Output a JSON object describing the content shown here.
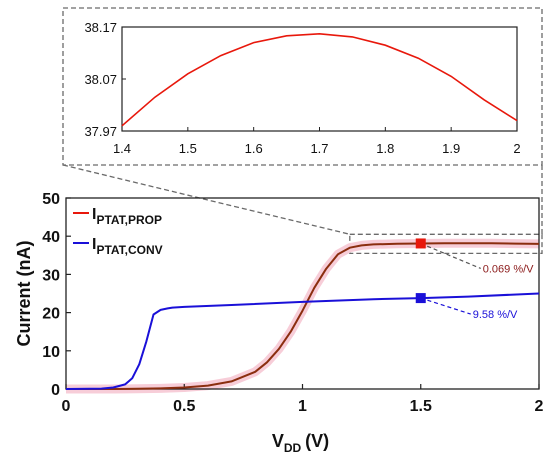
{
  "chart_data": [
    {
      "id": "inset",
      "type": "line",
      "title": "",
      "xlabel": "",
      "ylabel": "",
      "xlim": [
        1.4,
        2.0
      ],
      "ylim": [
        37.97,
        38.17
      ],
      "x_ticks": [
        "1.4",
        "1.5",
        "1.6",
        "1.7",
        "1.8",
        "1.9",
        "2"
      ],
      "y_ticks": [
        "38.17",
        "38.07",
        "37.97"
      ],
      "series": [
        {
          "color": "#e8180c",
          "x": [
            1.4,
            1.45,
            1.5,
            1.55,
            1.6,
            1.65,
            1.7,
            1.75,
            1.8,
            1.85,
            1.9,
            1.95,
            2.0
          ],
          "y": [
            37.98,
            38.035,
            38.08,
            38.115,
            38.14,
            38.153,
            38.157,
            38.151,
            38.135,
            38.11,
            38.075,
            38.03,
            37.99
          ]
        }
      ]
    },
    {
      "id": "main",
      "type": "line",
      "title": "",
      "xlabel_main": "V",
      "xlabel_sub": "DD",
      "xlabel_unit": "(V)",
      "ylabel": "Current (nA)",
      "xlim": [
        0,
        2
      ],
      "ylim": [
        0,
        50
      ],
      "x_ticks": [
        "0",
        "0.5",
        "1",
        "1.5",
        "2"
      ],
      "y_ticks": [
        "0",
        "10",
        "20",
        "30",
        "40",
        "50"
      ],
      "legend_position": "top-left",
      "series": [
        {
          "name_main": "I",
          "name_sub": "PTAT,PROP",
          "color": "#e8180c",
          "x": [
            0,
            0.2,
            0.3,
            0.4,
            0.5,
            0.6,
            0.7,
            0.8,
            0.85,
            0.9,
            0.95,
            1.0,
            1.05,
            1.1,
            1.15,
            1.2,
            1.25,
            1.3,
            1.4,
            1.5,
            1.6,
            1.7,
            1.8,
            1.9,
            2.0
          ],
          "y": [
            0,
            0,
            0.05,
            0.15,
            0.4,
            0.9,
            2.0,
            4.5,
            7.0,
            10.5,
            15.0,
            20.5,
            26.5,
            31.5,
            35.3,
            37.0,
            37.6,
            37.85,
            38.0,
            38.08,
            38.14,
            38.16,
            38.13,
            38.07,
            37.99
          ]
        },
        {
          "name_main": "I",
          "name_sub": "PTAT,CONV",
          "color": "#1a10d8",
          "x": [
            0,
            0.15,
            0.2,
            0.25,
            0.28,
            0.31,
            0.34,
            0.37,
            0.4,
            0.43,
            0.45,
            0.5,
            0.7,
            1.0,
            1.3,
            1.5,
            1.7,
            2.0
          ],
          "y": [
            0,
            0.1,
            0.4,
            1.2,
            2.8,
            6.5,
            12.5,
            19.5,
            20.7,
            21.1,
            21.3,
            21.5,
            22.0,
            22.8,
            23.5,
            23.8,
            24.2,
            25.0
          ]
        }
      ],
      "annotations": [
        {
          "text": "0.069 %/V",
          "color": "#8b1a1a",
          "marker_x": 1.5,
          "marker_y": 38.1
        },
        {
          "text": "9.58 %/V",
          "color": "#1a10d8",
          "marker_x": 1.5,
          "marker_y": 23.8
        }
      ],
      "zoom_region": {
        "x": [
          1.2,
          2.0
        ],
        "y": [
          35.5,
          40.5
        ]
      }
    }
  ]
}
